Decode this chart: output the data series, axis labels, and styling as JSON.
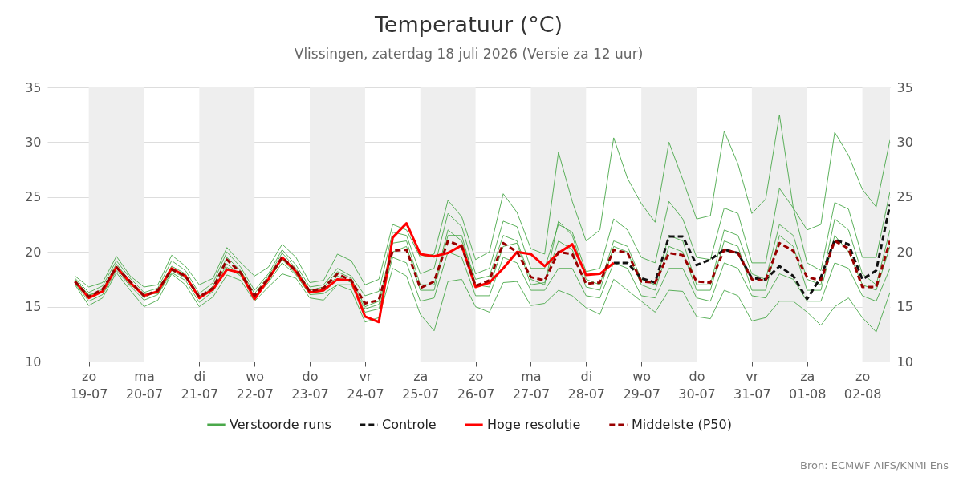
{
  "chart_data": {
    "type": "line",
    "title": "Temperatuur (°C)",
    "subtitle": "Vlissingen, zaterdag 18 juli 2026 (Versie za 12 uur)",
    "x": [
      "2026-07-18T18:00",
      "2026-07-19T00:00",
      "2026-07-19T06:00",
      "2026-07-19T12:00",
      "2026-07-19T18:00",
      "2026-07-20T00:00",
      "2026-07-20T06:00",
      "2026-07-20T12:00",
      "2026-07-20T18:00",
      "2026-07-21T00:00",
      "2026-07-21T06:00",
      "2026-07-21T12:00",
      "2026-07-21T18:00",
      "2026-07-22T00:00",
      "2026-07-22T06:00",
      "2026-07-22T12:00",
      "2026-07-22T18:00",
      "2026-07-23T00:00",
      "2026-07-23T06:00",
      "2026-07-23T12:00",
      "2026-07-23T18:00",
      "2026-07-24T00:00",
      "2026-07-24T06:00",
      "2026-07-24T12:00",
      "2026-07-24T18:00",
      "2026-07-25T00:00",
      "2026-07-25T06:00",
      "2026-07-25T12:00",
      "2026-07-25T18:00",
      "2026-07-26T00:00",
      "2026-07-26T06:00",
      "2026-07-26T12:00",
      "2026-07-26T18:00",
      "2026-07-27T00:00",
      "2026-07-27T06:00",
      "2026-07-27T12:00",
      "2026-07-27T18:00",
      "2026-07-28T00:00",
      "2026-07-28T06:00",
      "2026-07-28T12:00",
      "2026-07-28T18:00",
      "2026-07-29T00:00",
      "2026-07-29T06:00",
      "2026-07-29T12:00",
      "2026-07-29T18:00",
      "2026-07-30T00:00",
      "2026-07-30T06:00",
      "2026-07-30T12:00",
      "2026-07-30T18:00",
      "2026-07-31T00:00",
      "2026-07-31T06:00",
      "2026-07-31T12:00",
      "2026-07-31T18:00",
      "2026-08-01T00:00",
      "2026-08-01T06:00",
      "2026-08-01T12:00",
      "2026-08-01T18:00",
      "2026-08-02T00:00",
      "2026-08-02T06:00",
      "2026-08-02T12:00"
    ],
    "series": [
      {
        "name": "Verstoorde runs",
        "color": "#4aa84a",
        "line_style": "solid",
        "values": [
          17.8,
          16.8,
          17.2,
          19.6,
          17.8,
          16.8,
          17.0,
          19.7,
          18.7,
          17.0,
          17.6,
          20.4,
          19.0,
          17.8,
          18.6,
          20.7,
          19.5,
          17.2,
          17.4,
          19.8,
          19.2,
          17.0,
          17.5,
          22.5,
          22.0,
          19.5,
          19.8,
          24.7,
          23.2,
          19.3,
          20.0,
          25.3,
          23.6,
          20.3,
          19.8,
          29.1,
          24.6,
          21.0,
          22.0,
          30.4,
          26.7,
          24.4,
          22.7,
          30.0,
          26.6,
          23.0,
          23.3,
          31.0,
          28.0,
          23.5,
          24.8,
          32.5,
          24.0,
          22.0,
          22.5,
          30.9,
          28.8,
          25.7,
          24.1,
          30.2
        ]
      },
      {
        "color": "#4aa84a",
        "line_style": "solid",
        "values": [
          17.0,
          15.1,
          15.8,
          18.1,
          16.5,
          15.0,
          15.6,
          18.0,
          17.0,
          15.0,
          15.9,
          17.9,
          17.4,
          15.5,
          16.8,
          18.0,
          17.6,
          15.8,
          15.6,
          17.0,
          16.5,
          13.6,
          14.0,
          18.5,
          17.8,
          14.3,
          12.8,
          17.3,
          17.5,
          15.0,
          14.5,
          17.2,
          17.3,
          15.1,
          15.3,
          16.5,
          16.0,
          14.9,
          14.3,
          17.5,
          16.5,
          15.5,
          14.5,
          16.5,
          16.4,
          14.1,
          13.9,
          16.5,
          16.0,
          13.7,
          14.0,
          15.5,
          15.5,
          14.5,
          13.3,
          15.0,
          15.8,
          14.0,
          12.7,
          16.3
        ]
      },
      {
        "color": "#4aa84a",
        "line_style": "solid",
        "values": [
          17.6,
          16.3,
          16.9,
          19.2,
          17.6,
          16.3,
          16.7,
          19.2,
          18.3,
          16.2,
          17.2,
          20.0,
          18.6,
          16.5,
          18.0,
          20.2,
          18.8,
          16.8,
          17.0,
          18.5,
          17.8,
          16.0,
          16.4,
          21.8,
          21.5,
          18.0,
          18.5,
          23.5,
          22.3,
          18.0,
          18.5,
          22.8,
          22.3,
          18.5,
          18.5,
          22.5,
          21.8,
          18.2,
          18.5,
          23.0,
          22.0,
          19.5,
          19.0,
          24.6,
          23.0,
          19.5,
          19.3,
          24.0,
          23.5,
          19.0,
          19.0,
          25.8,
          24.0,
          19.0,
          18.3,
          24.5,
          23.9,
          19.5,
          19.5,
          25.5
        ]
      },
      {
        "color": "#4aa84a",
        "line_style": "solid",
        "values": [
          17.1,
          15.5,
          16.1,
          18.3,
          16.9,
          15.6,
          16.1,
          18.1,
          17.4,
          15.4,
          16.4,
          18.6,
          17.8,
          15.8,
          17.2,
          19.0,
          17.9,
          16.1,
          16.2,
          17.0,
          17.0,
          14.5,
          14.8,
          19.5,
          19.0,
          15.5,
          15.8,
          20.0,
          19.5,
          16.0,
          16.0,
          19.5,
          19.0,
          16.5,
          16.5,
          18.5,
          18.5,
          16.0,
          15.8,
          19.0,
          18.5,
          16.0,
          15.8,
          18.5,
          18.5,
          15.8,
          15.5,
          19.0,
          18.5,
          16.0,
          15.8,
          18.0,
          17.5,
          15.5,
          15.5,
          19.0,
          18.5,
          16.0,
          15.5,
          18.5
        ]
      },
      {
        "color": "#4aa84a",
        "line_style": "solid",
        "values": [
          17.5,
          16.0,
          16.6,
          18.9,
          17.3,
          15.8,
          16.5,
          18.7,
          18.0,
          15.7,
          16.9,
          19.5,
          18.3,
          16.2,
          17.8,
          19.9,
          18.5,
          16.5,
          16.8,
          18.2,
          17.6,
          15.0,
          15.5,
          20.8,
          21.0,
          17.0,
          17.0,
          22.0,
          21.0,
          17.5,
          17.8,
          21.5,
          21.0,
          17.5,
          17.0,
          22.8,
          21.5,
          17.5,
          17.0,
          21.0,
          20.5,
          17.5,
          17.0,
          21.5,
          21.0,
          17.0,
          17.0,
          22.0,
          21.5,
          18.0,
          17.5,
          22.5,
          21.5,
          17.5,
          17.0,
          23.0,
          22.0,
          18.0,
          17.0,
          22.0
        ]
      },
      {
        "color": "#4aa84a",
        "line_style": "solid",
        "values": [
          17.4,
          16.1,
          16.3,
          18.5,
          17.0,
          16.2,
          16.2,
          18.3,
          17.6,
          16.0,
          16.5,
          18.9,
          17.9,
          15.9,
          17.4,
          19.3,
          18.0,
          16.3,
          16.4,
          17.8,
          17.2,
          14.8,
          15.2,
          20.0,
          20.5,
          16.5,
          16.5,
          21.5,
          21.5,
          17.0,
          16.8,
          20.5,
          20.8,
          17.0,
          17.2,
          21.0,
          20.2,
          16.8,
          16.5,
          20.5,
          20.0,
          17.0,
          16.5,
          20.5,
          20.0,
          16.5,
          16.5,
          21.0,
          20.5,
          16.5,
          16.5,
          21.5,
          20.5,
          16.5,
          16.5,
          21.5,
          20.0,
          17.0,
          16.5,
          20.5
        ]
      },
      {
        "name": "Controle",
        "color": "#111111",
        "line_style": "dashed",
        "values": [
          null,
          null,
          null,
          null,
          null,
          null,
          null,
          null,
          null,
          null,
          null,
          null,
          null,
          null,
          null,
          null,
          null,
          null,
          null,
          null,
          null,
          null,
          null,
          null,
          null,
          null,
          null,
          null,
          null,
          null,
          null,
          null,
          null,
          null,
          null,
          null,
          null,
          null,
          null,
          19.0,
          19.0,
          17.6,
          17.2,
          21.4,
          21.4,
          18.8,
          19.3,
          20.2,
          19.9,
          17.6,
          17.5,
          18.7,
          17.8,
          15.7,
          17.7,
          21.1,
          20.7,
          17.5,
          18.3,
          24.3
        ]
      },
      {
        "name": "Hoge resolutie",
        "color": "#ff0000",
        "line_style": "solid",
        "values": [
          17.3,
          15.8,
          16.4,
          18.6,
          17.2,
          16.0,
          16.4,
          18.5,
          17.8,
          15.8,
          16.6,
          18.4,
          18.1,
          15.7,
          17.5,
          19.5,
          18.2,
          16.3,
          16.5,
          17.5,
          17.4,
          14.1,
          13.6,
          21.3,
          22.6,
          19.8,
          19.6,
          19.9,
          20.6,
          16.8,
          17.2,
          18.5,
          20.0,
          19.8,
          18.7,
          19.9,
          20.7,
          17.9,
          18.0,
          19.0,
          null,
          null,
          null,
          null,
          null,
          null,
          null,
          null,
          null,
          null,
          null,
          null,
          null,
          null,
          null,
          null,
          null,
          null,
          null,
          null
        ]
      },
      {
        "name": "Middelste (P50)",
        "color": "#990000",
        "line_style": "dashed",
        "values": [
          17.3,
          15.9,
          16.6,
          18.6,
          17.3,
          16.0,
          16.5,
          18.4,
          17.8,
          15.9,
          16.7,
          19.3,
          18.1,
          16.0,
          17.6,
          19.5,
          18.3,
          16.4,
          16.7,
          18.0,
          17.4,
          15.3,
          15.6,
          20.1,
          20.2,
          16.7,
          17.3,
          21.0,
          20.5,
          16.9,
          17.4,
          20.8,
          20.0,
          17.7,
          17.4,
          20.0,
          19.8,
          17.1,
          17.2,
          20.2,
          19.9,
          17.3,
          17.2,
          19.9,
          19.7,
          17.3,
          17.2,
          20.2,
          19.9,
          17.5,
          17.4,
          20.8,
          20.1,
          17.7,
          17.4,
          21.0,
          20.3,
          16.8,
          16.8,
          21.0
        ]
      }
    ],
    "xlim": [
      "2026-07-18T06:00",
      "2026-08-02T12:00"
    ],
    "xticks": [
      {
        "value": "2026-07-19",
        "label": "zo 19-07"
      },
      {
        "value": "2026-07-20",
        "label": "ma 20-07"
      },
      {
        "value": "2026-07-21",
        "label": "di 21-07"
      },
      {
        "value": "2026-07-22",
        "label": "wo 22-07"
      },
      {
        "value": "2026-07-23",
        "label": "do 23-07"
      },
      {
        "value": "2026-07-24",
        "label": "vr 24-07"
      },
      {
        "value": "2026-07-25",
        "label": "za 25-07"
      },
      {
        "value": "2026-07-26",
        "label": "zo 26-07"
      },
      {
        "value": "2026-07-27",
        "label": "ma 27-07"
      },
      {
        "value": "2026-07-28",
        "label": "di 28-07"
      },
      {
        "value": "2026-07-29",
        "label": "wo 29-07"
      },
      {
        "value": "2026-07-30",
        "label": "do 30-07"
      },
      {
        "value": "2026-07-31",
        "label": "vr 31-07"
      },
      {
        "value": "2026-08-01",
        "label": "za 01-08"
      },
      {
        "value": "2026-08-02",
        "label": "zo 02-08"
      }
    ],
    "ylim": [
      10,
      35
    ],
    "yticks": [
      10,
      15,
      20,
      25,
      30,
      35
    ],
    "y2lim": [
      10,
      35
    ],
    "y2ticks": [
      10,
      15,
      20,
      25,
      30,
      35
    ],
    "bands": [
      {
        "axis": "x",
        "from": "2026-07-19",
        "to": "2026-07-20",
        "color": "#eeeeee"
      },
      {
        "axis": "x",
        "from": "2026-07-21",
        "to": "2026-07-22",
        "color": "#eeeeee"
      },
      {
        "axis": "x",
        "from": "2026-07-23",
        "to": "2026-07-24",
        "color": "#eeeeee"
      },
      {
        "axis": "x",
        "from": "2026-07-25",
        "to": "2026-07-26",
        "color": "#eeeeee"
      },
      {
        "axis": "x",
        "from": "2026-07-27",
        "to": "2026-07-28",
        "color": "#eeeeee"
      },
      {
        "axis": "x",
        "from": "2026-07-29",
        "to": "2026-07-30",
        "color": "#eeeeee"
      },
      {
        "axis": "x",
        "from": "2026-07-31",
        "to": "2026-08-01",
        "color": "#eeeeee"
      },
      {
        "axis": "x",
        "from": "2026-08-02",
        "to": "2026-08-02T12:00",
        "color": "#eeeeee"
      }
    ],
    "grid": "y",
    "legend": "bottom",
    "marker": "none",
    "annotations": [
      "Bron: ECMWF AIFS/KNMI Ens"
    ]
  }
}
